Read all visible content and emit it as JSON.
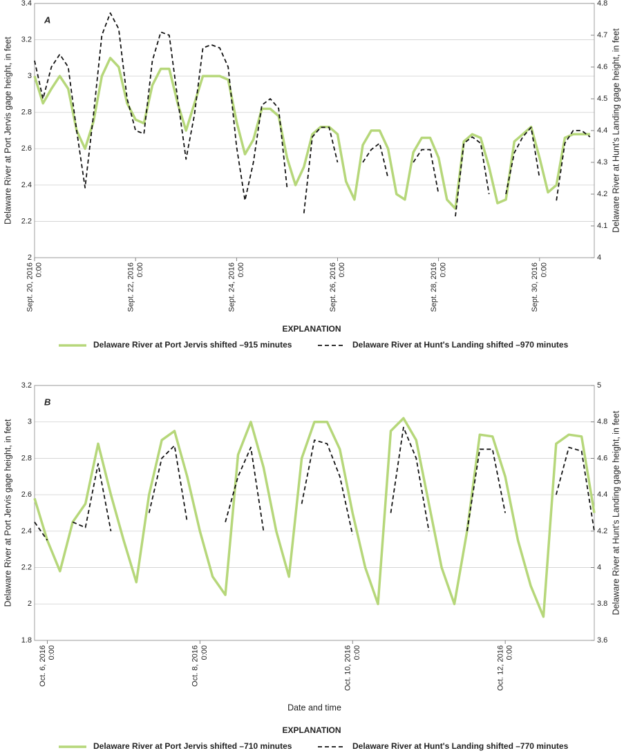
{
  "chart_data": [
    {
      "type": "line",
      "panel_label": "A",
      "y_label": "Delaware River at Port Jervis gage height, in feet",
      "y2_label": "Delaware River at Hunt's Landing gage height, in feet",
      "legend_title": "EXPLANATION",
      "grid": true,
      "x": [
        "2016-09-20 00:00",
        "2016-09-20 04:00",
        "2016-09-20 08:00",
        "2016-09-20 12:00",
        "2016-09-20 16:00",
        "2016-09-20 20:00",
        "2016-09-21 00:00",
        "2016-09-21 04:00",
        "2016-09-21 08:00",
        "2016-09-21 12:00",
        "2016-09-21 16:00",
        "2016-09-21 20:00",
        "2016-09-22 00:00",
        "2016-09-22 04:00",
        "2016-09-22 08:00",
        "2016-09-22 12:00",
        "2016-09-22 16:00",
        "2016-09-22 20:00",
        "2016-09-23 00:00",
        "2016-09-23 04:00",
        "2016-09-23 08:00",
        "2016-09-23 12:00",
        "2016-09-23 16:00",
        "2016-09-23 20:00",
        "2016-09-24 00:00",
        "2016-09-24 04:00",
        "2016-09-24 08:00",
        "2016-09-24 12:00",
        "2016-09-24 16:00",
        "2016-09-24 20:00",
        "2016-09-25 00:00",
        "2016-09-25 04:00",
        "2016-09-25 08:00",
        "2016-09-25 12:00",
        "2016-09-25 16:00",
        "2016-09-25 20:00",
        "2016-09-26 00:00",
        "2016-09-26 04:00",
        "2016-09-26 08:00",
        "2016-09-26 12:00",
        "2016-09-26 16:00",
        "2016-09-26 20:00",
        "2016-09-27 00:00",
        "2016-09-27 04:00",
        "2016-09-27 08:00",
        "2016-09-27 12:00",
        "2016-09-27 16:00",
        "2016-09-27 20:00",
        "2016-09-28 00:00",
        "2016-09-28 04:00",
        "2016-09-28 08:00",
        "2016-09-28 12:00",
        "2016-09-28 16:00",
        "2016-09-28 20:00",
        "2016-09-29 00:00",
        "2016-09-29 04:00",
        "2016-09-29 08:00",
        "2016-09-29 12:00",
        "2016-09-29 16:00",
        "2016-09-29 20:00",
        "2016-09-30 00:00",
        "2016-09-30 04:00",
        "2016-09-30 08:00",
        "2016-09-30 12:00",
        "2016-09-30 16:00",
        "2016-09-30 20:00",
        "2016-10-01 00:00"
      ],
      "xlim": [
        "2016-09-20 00:00",
        "2016-10-01 02:00"
      ],
      "xticks": [
        {
          "value": "2016-09-20 00:00",
          "label": "Sept. 20, 2016\n0:00"
        },
        {
          "value": "2016-09-22 00:00",
          "label": "Sept. 22, 2016\n0:00"
        },
        {
          "value": "2016-09-24 00:00",
          "label": "Sept. 24, 2016\n0:00"
        },
        {
          "value": "2016-09-26 00:00",
          "label": "Sept. 26, 2016\n0:00"
        },
        {
          "value": "2016-09-28 00:00",
          "label": "Sept. 28, 2016\n0:00"
        },
        {
          "value": "2016-09-30 00:00",
          "label": "Sept. 30, 2016\n0:00"
        }
      ],
      "ylim": [
        2,
        3.4
      ],
      "yticks": [
        2,
        2.2,
        2.4,
        2.6,
        2.8,
        3,
        3.2,
        3.4
      ],
      "y2lim": [
        4,
        4.8
      ],
      "y2ticks": [
        4,
        4.1,
        4.2,
        4.3,
        4.4,
        4.5,
        4.6,
        4.7,
        4.8
      ],
      "series": [
        {
          "name": "Delaware River at Port Jervis shifted –915 minutes",
          "color": "#b6d77a",
          "line_style": "solid",
          "values": [
            3.0,
            2.85,
            2.93,
            3.0,
            2.93,
            2.7,
            2.6,
            2.75,
            3.0,
            3.1,
            3.05,
            2.85,
            2.76,
            2.74,
            2.95,
            3.04,
            3.04,
            2.85,
            2.7,
            2.85,
            3.0,
            3.0,
            3.0,
            2.98,
            2.75,
            2.57,
            2.65,
            2.82,
            2.82,
            2.78,
            2.55,
            2.4,
            2.5,
            2.68,
            2.72,
            2.72,
            2.68,
            2.42,
            2.32,
            2.62,
            2.7,
            2.7,
            2.6,
            2.35,
            2.32,
            2.58,
            2.66,
            2.66,
            2.55,
            2.32,
            2.27,
            2.64,
            2.68,
            2.66,
            2.5,
            2.3,
            2.32,
            2.64,
            2.68,
            2.72,
            2.55,
            2.36,
            2.4,
            2.66,
            2.68,
            2.68,
            2.68
          ]
        },
        {
          "name": "Delaware River at Hunt's Landing shifted –970 minutes",
          "color": "#111111",
          "line_style": "dashed",
          "axis": "y2",
          "values": [
            4.62,
            4.5,
            4.6,
            4.64,
            4.6,
            4.4,
            4.22,
            4.45,
            4.7,
            4.77,
            4.72,
            4.5,
            4.4,
            4.39,
            4.62,
            4.71,
            4.7,
            4.5,
            4.31,
            4.45,
            4.66,
            4.67,
            4.66,
            4.6,
            4.35,
            4.18,
            4.3,
            4.48,
            4.5,
            4.47,
            4.22,
            null,
            4.14,
            4.38,
            4.41,
            4.41,
            4.3,
            null,
            null,
            4.3,
            4.34,
            4.36,
            4.25,
            null,
            null,
            4.3,
            4.34,
            4.34,
            4.2,
            null,
            4.13,
            4.36,
            4.38,
            4.36,
            4.2,
            null,
            4.2,
            4.33,
            4.38,
            4.41,
            4.25,
            null,
            4.18,
            4.36,
            4.4,
            4.4,
            4.38
          ]
        }
      ]
    },
    {
      "type": "line",
      "panel_label": "B",
      "y_label": "Delaware River at Port Jervis gage height, in feet",
      "y2_label": "Delaware River at Hunt's Landing gage height, in feet",
      "x_label": "Date and time",
      "legend_title": "EXPLANATION",
      "grid": true,
      "x": [
        "2016-10-05 20:00",
        "2016-10-06 00:00",
        "2016-10-06 04:00",
        "2016-10-06 08:00",
        "2016-10-06 12:00",
        "2016-10-06 16:00",
        "2016-10-06 20:00",
        "2016-10-07 00:00",
        "2016-10-07 04:00",
        "2016-10-07 08:00",
        "2016-10-07 12:00",
        "2016-10-07 16:00",
        "2016-10-07 20:00",
        "2016-10-08 00:00",
        "2016-10-08 04:00",
        "2016-10-08 08:00",
        "2016-10-08 12:00",
        "2016-10-08 16:00",
        "2016-10-08 20:00",
        "2016-10-09 00:00",
        "2016-10-09 04:00",
        "2016-10-09 08:00",
        "2016-10-09 12:00",
        "2016-10-09 16:00",
        "2016-10-09 20:00",
        "2016-10-10 00:00",
        "2016-10-10 04:00",
        "2016-10-10 08:00",
        "2016-10-10 12:00",
        "2016-10-10 16:00",
        "2016-10-10 20:00",
        "2016-10-11 00:00",
        "2016-10-11 04:00",
        "2016-10-11 08:00",
        "2016-10-11 12:00",
        "2016-10-11 16:00",
        "2016-10-11 20:00",
        "2016-10-12 00:00",
        "2016-10-12 04:00",
        "2016-10-12 08:00",
        "2016-10-12 12:00",
        "2016-10-12 16:00",
        "2016-10-12 20:00",
        "2016-10-13 00:00",
        "2016-10-13 04:00"
      ],
      "xlim": [
        "2016-10-05 20:00",
        "2016-10-13 04:00"
      ],
      "xticks": [
        {
          "value": "2016-10-06 00:00",
          "label": "Oct. 6, 2016\n0:00"
        },
        {
          "value": "2016-10-08 00:00",
          "label": "Oct. 8, 2016\n0:00"
        },
        {
          "value": "2016-10-10 00:00",
          "label": "Oct. 10, 2016\n0:00"
        },
        {
          "value": "2016-10-12 00:00",
          "label": "Oct. 12, 2016\n0:00"
        }
      ],
      "ylim": [
        1.8,
        3.2
      ],
      "yticks": [
        1.8,
        2,
        2.2,
        2.4,
        2.6,
        2.8,
        3,
        3.2
      ],
      "y2lim": [
        3.6,
        5
      ],
      "y2ticks": [
        3.6,
        3.8,
        4,
        4.2,
        4.4,
        4.6,
        4.8,
        5
      ],
      "series": [
        {
          "name": "Delaware River at Port Jervis shifted –710 minutes",
          "color": "#b6d77a",
          "line_style": "solid",
          "values": [
            2.58,
            2.35,
            2.18,
            2.45,
            2.55,
            2.88,
            2.6,
            2.35,
            2.12,
            2.6,
            2.9,
            2.95,
            2.7,
            2.4,
            2.15,
            2.05,
            2.82,
            3.0,
            2.75,
            2.4,
            2.15,
            2.8,
            3.0,
            3.0,
            2.85,
            2.5,
            2.2,
            2.0,
            2.95,
            3.02,
            2.9,
            2.55,
            2.2,
            2.0,
            2.4,
            2.93,
            2.92,
            2.7,
            2.35,
            2.1,
            1.93,
            2.88,
            2.93,
            2.92,
            2.5
          ]
        },
        {
          "name": "Delaware River at Hunt's Landing shifted –770 minutes",
          "color": "#111111",
          "line_style": "dashed",
          "axis": "y2",
          "values": [
            4.25,
            4.15,
            null,
            4.25,
            4.22,
            4.57,
            4.2,
            null,
            null,
            4.3,
            4.6,
            4.67,
            4.25,
            null,
            null,
            4.25,
            4.5,
            4.66,
            4.2,
            null,
            null,
            4.35,
            4.7,
            4.68,
            4.5,
            4.18,
            null,
            null,
            4.3,
            4.77,
            4.6,
            4.2,
            null,
            null,
            4.2,
            4.65,
            4.65,
            4.3,
            null,
            null,
            null,
            4.4,
            4.66,
            4.64,
            4.2
          ]
        }
      ]
    }
  ]
}
